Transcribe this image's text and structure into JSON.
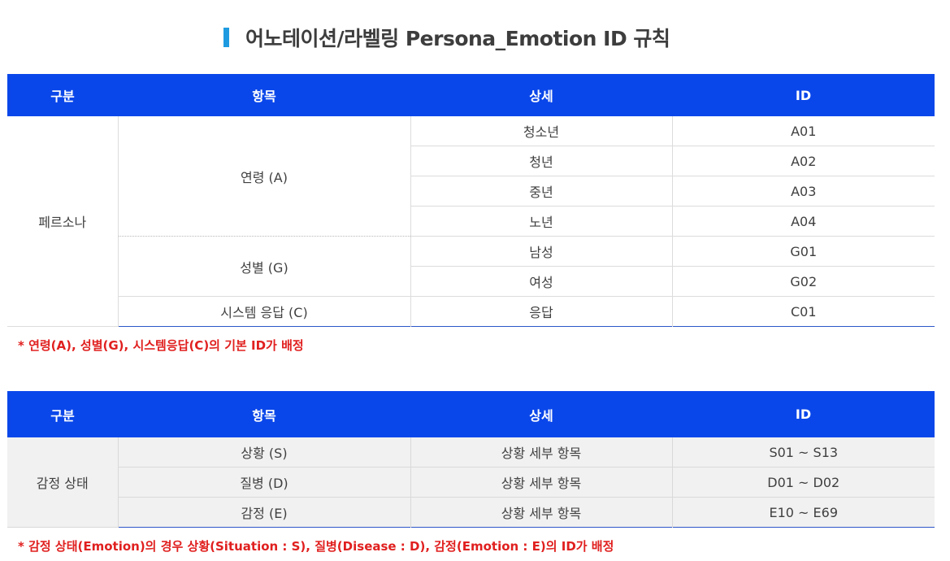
{
  "title": "어노테이션/라벨링 Persona_Emotion ID 규칙",
  "headers": [
    "구분",
    "항목",
    "상세",
    "ID"
  ],
  "persona": {
    "category": "페르소나",
    "groups": [
      {
        "label": "연령 (A)",
        "rows": [
          {
            "detail": "청소년",
            "id": "A01"
          },
          {
            "detail": "청년",
            "id": "A02"
          },
          {
            "detail": "중년",
            "id": "A03"
          },
          {
            "detail": "노년",
            "id": "A04"
          }
        ]
      },
      {
        "label": "성별 (G)",
        "rows": [
          {
            "detail": "남성",
            "id": "G01"
          },
          {
            "detail": "여성",
            "id": "G02"
          }
        ]
      },
      {
        "label": "시스템 응답 (C)",
        "rows": [
          {
            "detail": "응답",
            "id": "C01"
          }
        ]
      }
    ]
  },
  "note1": "* 연령(A), 성별(G), 시스템응답(C)의 기본 ID가 배정",
  "emotion": {
    "category": "감정 상태",
    "rows": [
      {
        "item": "상황 (S)",
        "detail": "상황 세부 항목",
        "id": "S01 ~ S13"
      },
      {
        "item": "질병 (D)",
        "detail": "상황 세부 항목",
        "id": "D01 ~ D02"
      },
      {
        "item": "감정 (E)",
        "detail": "상황 세부 항목",
        "id": "E10 ~ E69"
      }
    ]
  },
  "note2": "* 감정 상태(Emotion)의 경우 상황(Situation : S), 질병(Disease : D), 감정(Emotion : E)의 ID가 배정",
  "colors": {
    "header_bg": "#0a47ea",
    "title_bar": "#1e9be0",
    "note": "#e0201f"
  }
}
